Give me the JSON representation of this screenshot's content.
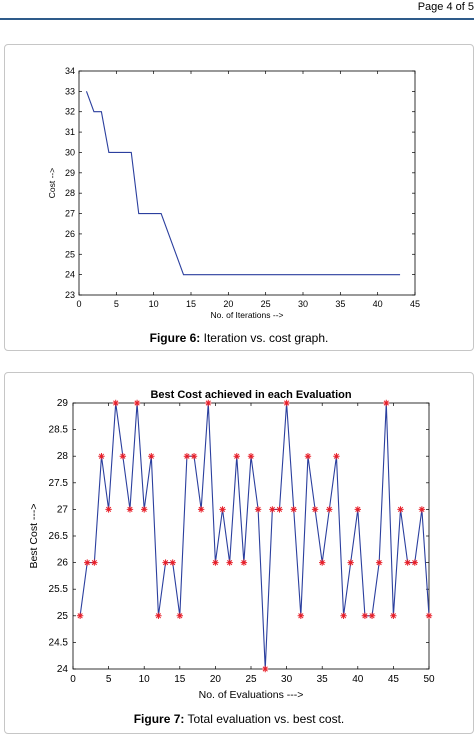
{
  "page": {
    "number_text": "Page 4 of 5"
  },
  "figures": [
    {
      "caption_label": "Figure 6:",
      "caption_text": " Iteration vs. cost graph."
    },
    {
      "caption_label": "Figure 7:",
      "caption_text": " Total evaluation vs. best cost."
    }
  ],
  "colors": {
    "line": "#2b3f9e",
    "marker": "#e8202a",
    "header_rule": "#2e5b8a"
  },
  "chart_data": [
    {
      "type": "line",
      "title": "",
      "xlabel": "No. of Iterations -->",
      "ylabel": "Cost -->",
      "xlim": [
        0,
        45
      ],
      "ylim": [
        23,
        34
      ],
      "xticks": [
        0,
        5,
        10,
        15,
        20,
        25,
        30,
        35,
        40,
        45
      ],
      "yticks": [
        23,
        24,
        25,
        26,
        27,
        28,
        29,
        30,
        31,
        32,
        33,
        34
      ],
      "grid": false,
      "legend": "none",
      "series": [
        {
          "x": [
            1,
            2,
            3,
            4,
            5,
            6,
            7,
            8,
            9,
            10,
            11,
            12,
            13,
            14,
            15,
            16,
            17,
            18,
            19,
            20,
            21,
            22,
            23,
            24,
            25,
            26,
            27,
            28,
            29,
            30,
            31,
            32,
            33,
            34,
            35,
            36,
            37,
            38,
            39,
            40,
            41,
            42,
            43
          ],
          "y": [
            33,
            32,
            32,
            30,
            30,
            30,
            30,
            27,
            27,
            27,
            27,
            26,
            25,
            24,
            24,
            24,
            24,
            24,
            24,
            24,
            24,
            24,
            24,
            24,
            24,
            24,
            24,
            24,
            24,
            24,
            24,
            24,
            24,
            24,
            24,
            24,
            24,
            24,
            24,
            24,
            24,
            24,
            24
          ]
        }
      ]
    },
    {
      "type": "line",
      "title": "Best Cost achieved in each Evaluation",
      "xlabel": "No. of Evaluations --->",
      "ylabel": "Best Cost --->",
      "xlim": [
        0,
        50
      ],
      "ylim": [
        24,
        29
      ],
      "xticks": [
        0,
        5,
        10,
        15,
        20,
        25,
        30,
        35,
        40,
        45,
        50
      ],
      "yticks": [
        24,
        24.5,
        25,
        25.5,
        26,
        26.5,
        27,
        27.5,
        28,
        28.5,
        29
      ],
      "grid": false,
      "legend": "none",
      "markers": "asterisk",
      "series": [
        {
          "x": [
            1,
            2,
            3,
            4,
            5,
            6,
            7,
            8,
            9,
            10,
            11,
            12,
            13,
            14,
            15,
            16,
            17,
            18,
            19,
            20,
            21,
            22,
            23,
            24,
            25,
            26,
            27,
            28,
            29,
            30,
            31,
            32,
            33,
            34,
            35,
            36,
            37,
            38,
            39,
            40,
            41,
            42,
            43,
            44,
            45,
            46,
            47,
            48,
            49,
            50
          ],
          "y": [
            25,
            26,
            26,
            28,
            27,
            29,
            28,
            27,
            29,
            27,
            28,
            25,
            26,
            26,
            25,
            28,
            28,
            27,
            29,
            26,
            27,
            26,
            28,
            26,
            28,
            27,
            24,
            27,
            27,
            29,
            27,
            25,
            28,
            27,
            26,
            27,
            28,
            25,
            26,
            27,
            25,
            25,
            26,
            29,
            25,
            27,
            26,
            26,
            27,
            25
          ]
        }
      ]
    }
  ]
}
